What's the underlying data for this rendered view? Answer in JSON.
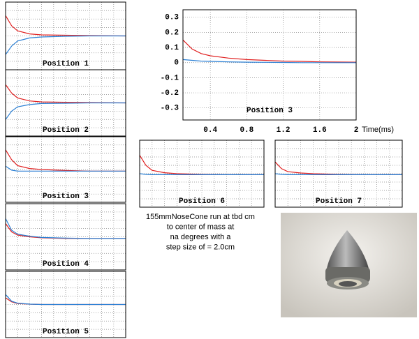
{
  "chart_data": [
    {
      "type": "line",
      "title": "Position 3",
      "x_label": "Time(ms)",
      "x": [
        0.1,
        0.2,
        0.3,
        0.4,
        0.6,
        0.8,
        1.0,
        1.2,
        1.4,
        1.6,
        2.0
      ],
      "series": [
        {
          "color": "#e02020",
          "values": [
            0.15,
            0.09,
            0.06,
            0.045,
            0.03,
            0.02,
            0.015,
            0.01,
            0.008,
            0.005,
            0.003
          ]
        },
        {
          "color": "#2a7fd4",
          "values": [
            0.02,
            0.015,
            0.01,
            0.008,
            0.005,
            0.003,
            0.002,
            0.001,
            0,
            0,
            0
          ]
        }
      ],
      "xlim": [
        0.1,
        2
      ],
      "ylim": [
        -0.38,
        0.35
      ],
      "xticks": [
        0.4,
        0.8,
        1.2,
        1.6,
        2
      ],
      "yticks": [
        0.3,
        0.2,
        0.1,
        0,
        -0.1,
        -0.2,
        -0.3
      ],
      "grid": true
    },
    {
      "type": "line",
      "title": "Position 1",
      "x": [
        0,
        0.05,
        0.1,
        0.2,
        0.3,
        0.5,
        0.7,
        1
      ],
      "series": [
        {
          "color": "#e02020",
          "values": [
            0.6,
            0.3,
            0.15,
            0.06,
            0.03,
            0.02,
            0.01,
            0
          ]
        },
        {
          "color": "#2a7fd4",
          "values": [
            -0.55,
            -0.3,
            -0.15,
            -0.06,
            -0.03,
            -0.01,
            0,
            0
          ]
        }
      ],
      "xlim": [
        0,
        1
      ],
      "ylim": [
        -1,
        1
      ],
      "xticks": [
        0.1,
        0.2,
        0.3,
        0.4,
        0.5,
        0.6,
        0.7,
        0.8,
        0.9
      ],
      "yticks": [
        -0.75,
        -0.5,
        -0.25,
        0,
        0.25,
        0.5,
        0.75
      ],
      "grid": true
    },
    {
      "type": "line",
      "title": "Position 2",
      "x": [
        0,
        0.05,
        0.1,
        0.2,
        0.3,
        0.5,
        0.7,
        1
      ],
      "series": [
        {
          "color": "#e02020",
          "values": [
            0.55,
            0.3,
            0.15,
            0.06,
            0.03,
            0.02,
            0.01,
            0
          ]
        },
        {
          "color": "#2a7fd4",
          "values": [
            -0.5,
            -0.25,
            -0.12,
            -0.05,
            -0.02,
            -0.01,
            0,
            0
          ]
        }
      ],
      "xlim": [
        0,
        1
      ],
      "ylim": [
        -1,
        1
      ],
      "xticks": [
        0.1,
        0.2,
        0.3,
        0.4,
        0.5,
        0.6,
        0.7,
        0.8,
        0.9
      ],
      "yticks": [
        -0.75,
        -0.5,
        -0.25,
        0,
        0.25,
        0.5,
        0.75
      ],
      "grid": true
    },
    {
      "type": "line",
      "title": "Position 3",
      "x": [
        0,
        0.05,
        0.1,
        0.2,
        0.3,
        0.5,
        0.7,
        1
      ],
      "series": [
        {
          "color": "#e02020",
          "values": [
            0.6,
            0.3,
            0.12,
            0.03,
            0,
            -0.03,
            -0.05,
            -0.05
          ]
        },
        {
          "color": "#2a7fd4",
          "values": [
            0.1,
            -0.02,
            -0.05,
            -0.05,
            -0.05,
            -0.05,
            -0.05,
            -0.05
          ]
        }
      ],
      "xlim": [
        0,
        1
      ],
      "ylim": [
        -1,
        1
      ],
      "xticks": [
        0.1,
        0.2,
        0.3,
        0.4,
        0.5,
        0.6,
        0.7,
        0.8,
        0.9
      ],
      "yticks": [
        -0.75,
        -0.5,
        -0.25,
        0,
        0.25,
        0.5,
        0.75
      ],
      "grid": true
    },
    {
      "type": "line",
      "title": "Position 4",
      "x": [
        0,
        0.05,
        0.1,
        0.2,
        0.3,
        0.5,
        0.7,
        1
      ],
      "series": [
        {
          "color": "#e02020",
          "values": [
            0.4,
            0.15,
            0.05,
            0,
            -0.03,
            -0.05,
            -0.05,
            -0.05
          ]
        },
        {
          "color": "#2a7fd4",
          "values": [
            0.55,
            0.2,
            0.08,
            0.02,
            -0.02,
            -0.04,
            -0.05,
            -0.05
          ]
        }
      ],
      "xlim": [
        0,
        1
      ],
      "ylim": [
        -1,
        1
      ],
      "xticks": [
        0.1,
        0.2,
        0.3,
        0.4,
        0.5,
        0.6,
        0.7,
        0.8,
        0.9
      ],
      "yticks": [
        -0.75,
        -0.5,
        -0.25,
        0,
        0.25,
        0.5,
        0.75
      ],
      "grid": true
    },
    {
      "type": "line",
      "title": "Position 5",
      "x": [
        0,
        0.05,
        0.1,
        0.2,
        0.3,
        0.5,
        0.7,
        1
      ],
      "series": [
        {
          "color": "#e02020",
          "values": [
            0.2,
            0.08,
            0.03,
            0.01,
            0,
            0,
            0,
            0
          ]
        },
        {
          "color": "#2a7fd4",
          "values": [
            0.3,
            0.1,
            0.04,
            0.01,
            0,
            0,
            0,
            0
          ]
        }
      ],
      "xlim": [
        0,
        1
      ],
      "ylim": [
        -1,
        1
      ],
      "xticks": [
        0.1,
        0.2,
        0.3,
        0.4,
        0.5,
        0.6,
        0.7,
        0.8,
        0.9
      ],
      "yticks": [
        -0.75,
        -0.5,
        -0.25,
        0,
        0.25,
        0.5,
        0.75
      ],
      "grid": true
    },
    {
      "type": "line",
      "title": "Position 6",
      "x": [
        0,
        0.05,
        0.1,
        0.2,
        0.3,
        0.5,
        0.7,
        1
      ],
      "series": [
        {
          "color": "#e02020",
          "values": [
            0.55,
            0.25,
            0.1,
            0.03,
            0,
            -0.02,
            -0.03,
            -0.03
          ]
        },
        {
          "color": "#2a7fd4",
          "values": [
            0,
            -0.02,
            -0.03,
            -0.03,
            -0.03,
            -0.03,
            -0.03,
            -0.03
          ]
        }
      ],
      "xlim": [
        0,
        1
      ],
      "ylim": [
        -1,
        1
      ],
      "xticks": [
        0.1,
        0.2,
        0.3,
        0.4,
        0.5,
        0.6,
        0.7,
        0.8,
        0.9
      ],
      "yticks": [
        -0.75,
        -0.5,
        -0.25,
        0,
        0.25,
        0.5,
        0.75
      ],
      "grid": true
    },
    {
      "type": "line",
      "title": "Position 7",
      "x": [
        0,
        0.05,
        0.1,
        0.2,
        0.3,
        0.5,
        0.7,
        1
      ],
      "series": [
        {
          "color": "#e02020",
          "values": [
            0.35,
            0.15,
            0.06,
            0.02,
            0,
            -0.02,
            -0.03,
            -0.03
          ]
        },
        {
          "color": "#2a7fd4",
          "values": [
            0,
            -0.02,
            -0.03,
            -0.03,
            -0.03,
            -0.03,
            -0.03,
            -0.03
          ]
        }
      ],
      "xlim": [
        0,
        1
      ],
      "ylim": [
        -1,
        1
      ],
      "xticks": [
        0.1,
        0.2,
        0.3,
        0.4,
        0.5,
        0.6,
        0.7,
        0.8,
        0.9
      ],
      "yticks": [
        -0.75,
        -0.5,
        -0.25,
        0,
        0.25,
        0.5,
        0.75
      ],
      "grid": true
    }
  ],
  "caption": [
    "155mmNoseCone run at tbd cm",
    "to center of mass at",
    "na degrees with a",
    "step size of = 2.0cm"
  ]
}
